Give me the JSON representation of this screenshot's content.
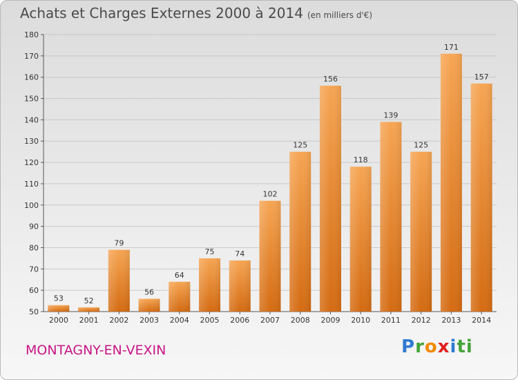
{
  "header": {
    "title": "Achats et Charges Externes 2000 à 2014",
    "subtitle": "(en milliers d'€)"
  },
  "footer": {
    "commune": "MONTAGNY-EN-VEXIN",
    "logo_letters": [
      "P",
      "r",
      "o",
      "x",
      "i",
      "ti"
    ]
  },
  "colors": {
    "bar_top": "#f6a553",
    "bar_bottom": "#d46b12",
    "grid": "#c8c8c8",
    "commune": "#c71585"
  },
  "chart_data": {
    "type": "bar",
    "title": "Achats et Charges Externes 2000 à 2014",
    "subtitle": "(en milliers d'€)",
    "categories": [
      "2000",
      "2001",
      "2002",
      "2003",
      "2004",
      "2005",
      "2006",
      "2007",
      "2008",
      "2009",
      "2010",
      "2011",
      "2012",
      "2013",
      "2014"
    ],
    "values": [
      53,
      52,
      79,
      56,
      64,
      75,
      74,
      102,
      125,
      156,
      118,
      139,
      125,
      171,
      157
    ],
    "ylim": [
      50,
      180
    ],
    "yticks": [
      50,
      60,
      70,
      80,
      90,
      100,
      110,
      120,
      130,
      140,
      150,
      160,
      170,
      180
    ],
    "grid": true,
    "data_labels": true
  }
}
